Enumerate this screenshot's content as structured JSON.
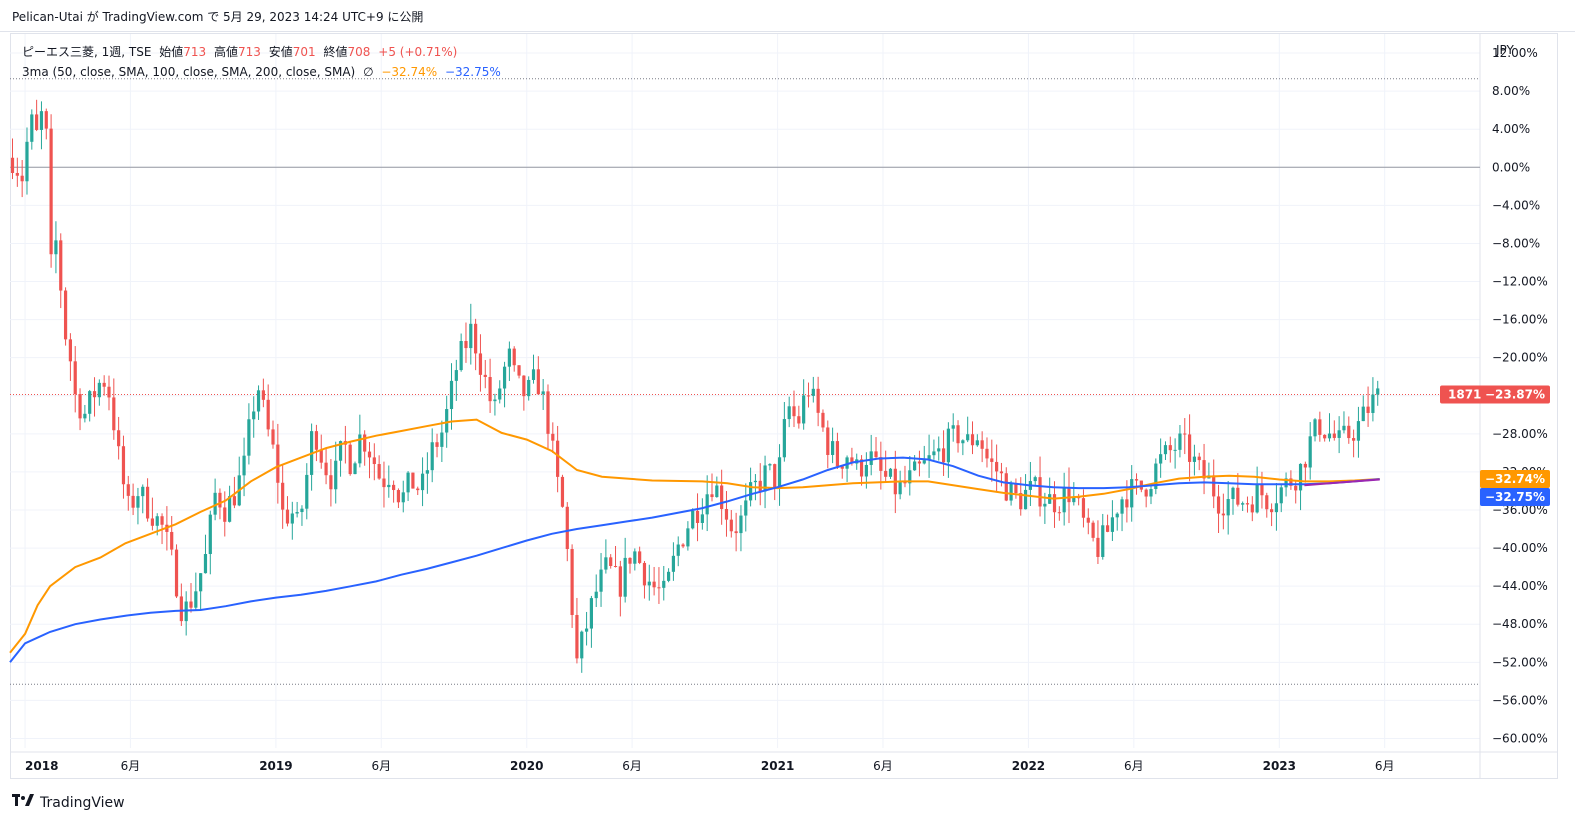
{
  "header": {
    "publish_line": "Pelican-Utai が TradingView.com で 5月 29, 2023 14:24 UTC+9 に公開"
  },
  "legend": {
    "symbol": "ピーエス三菱, 1週, TSE",
    "open_label": "始値",
    "open_value": "713",
    "high_label": "高値",
    "high_value": "713",
    "low_label": "安値",
    "low_value": "701",
    "close_label": "終値",
    "close_value": "708",
    "change": "+5 (+0.71%)",
    "indicator": "3ma (50, close, SMA, 100, close, SMA, 200, close, SMA)",
    "indicator_icon": "∅",
    "ma50_value": "−32.74%",
    "ma100_value": "−32.75%"
  },
  "axis": {
    "currency": "JPY",
    "price_badge_label": "1871",
    "price_badge_value": "−23.87%",
    "ma_badges": [
      "−32.74%",
      "−32.75%"
    ]
  },
  "brand": {
    "name": "TradingView"
  },
  "colors": {
    "up": "#26a69a",
    "down": "#ef5350",
    "ma50": "#ff9800",
    "ma100": "#2962ff",
    "ma200": "#9c27b0",
    "grid": "#f0f3fa"
  },
  "chart_data": {
    "type": "candlestick",
    "yunit": "percent",
    "ylim": [
      -61,
      14
    ],
    "yticks": [
      "12.00%",
      "8.00%",
      "4.00%",
      "0.00%",
      "−4.00%",
      "−8.00%",
      "−12.00%",
      "−16.00%",
      "−20.00%",
      "−24.00%",
      "−28.00%",
      "−32.00%",
      "−36.00%",
      "−40.00%",
      "−44.00%",
      "−48.00%",
      "−52.00%",
      "−56.00%",
      "−60.00%"
    ],
    "ytick_values": [
      12,
      8,
      4,
      0,
      -4,
      -8,
      -12,
      -16,
      -20,
      -24,
      -28,
      -32,
      -36,
      -40,
      -44,
      -48,
      -52,
      -56,
      -60
    ],
    "xticks": [
      {
        "label": "2018",
        "t": 2018.0,
        "year": true
      },
      {
        "label": "6月",
        "t": 2018.42,
        "year": false
      },
      {
        "label": "2019",
        "t": 2019.0,
        "year": true
      },
      {
        "label": "6月",
        "t": 2019.42,
        "year": false
      },
      {
        "label": "2020",
        "t": 2020.0,
        "year": true
      },
      {
        "label": "6月",
        "t": 2020.42,
        "year": false
      },
      {
        "label": "2021",
        "t": 2021.0,
        "year": true
      },
      {
        "label": "6月",
        "t": 2021.42,
        "year": false
      },
      {
        "label": "2022",
        "t": 2022.0,
        "year": true
      },
      {
        "label": "6月",
        "t": 2022.42,
        "year": false
      },
      {
        "label": "2023",
        "t": 2023.0,
        "year": true
      },
      {
        "label": "6月",
        "t": 2023.42,
        "year": false
      }
    ],
    "xlim": [
      2017.94,
      2023.8
    ],
    "reference_lines": [
      {
        "value": 0,
        "style": "solid"
      },
      {
        "value": 9.3,
        "style": "dotted"
      },
      {
        "value": -54.3,
        "style": "dotted"
      },
      {
        "value": -23.87,
        "style": "dotted-red"
      }
    ],
    "close_path": [
      [
        2017.95,
        1
      ],
      [
        2017.99,
        -1
      ],
      [
        2018.02,
        5
      ],
      [
        2018.05,
        3
      ],
      [
        2018.07,
        6
      ],
      [
        2018.09,
        2
      ],
      [
        2018.1,
        -11
      ],
      [
        2018.13,
        -7
      ],
      [
        2018.15,
        -16
      ],
      [
        2018.18,
        -20
      ],
      [
        2018.2,
        -24
      ],
      [
        2018.24,
        -26
      ],
      [
        2018.27,
        -24
      ],
      [
        2018.31,
        -22
      ],
      [
        2018.34,
        -24
      ],
      [
        2018.37,
        -30
      ],
      [
        2018.41,
        -36
      ],
      [
        2018.45,
        -34
      ],
      [
        2018.5,
        -36
      ],
      [
        2018.55,
        -38
      ],
      [
        2018.6,
        -43
      ],
      [
        2018.63,
        -47
      ],
      [
        2018.67,
        -45
      ],
      [
        2018.72,
        -41
      ],
      [
        2018.76,
        -34
      ],
      [
        2018.8,
        -36
      ],
      [
        2018.84,
        -34
      ],
      [
        2018.88,
        -31
      ],
      [
        2018.9,
        -26
      ],
      [
        2018.93,
        -23
      ],
      [
        2018.96,
        -27
      ],
      [
        2019.0,
        -31
      ],
      [
        2019.03,
        -37
      ],
      [
        2019.06,
        -36
      ],
      [
        2019.09,
        -38
      ],
      [
        2019.12,
        -33
      ],
      [
        2019.15,
        -27
      ],
      [
        2019.19,
        -31
      ],
      [
        2019.23,
        -33
      ],
      [
        2019.27,
        -29
      ],
      [
        2019.3,
        -31
      ],
      [
        2019.34,
        -28
      ],
      [
        2019.38,
        -30
      ],
      [
        2019.42,
        -33
      ],
      [
        2019.46,
        -32
      ],
      [
        2019.5,
        -35
      ],
      [
        2019.54,
        -33
      ],
      [
        2019.58,
        -34
      ],
      [
        2019.62,
        -30
      ],
      [
        2019.66,
        -28
      ],
      [
        2019.69,
        -25
      ],
      [
        2019.72,
        -21
      ],
      [
        2019.75,
        -19
      ],
      [
        2019.78,
        -17
      ],
      [
        2019.81,
        -20
      ],
      [
        2019.84,
        -23
      ],
      [
        2019.87,
        -26
      ],
      [
        2019.9,
        -22
      ],
      [
        2019.93,
        -20
      ],
      [
        2019.96,
        -23
      ],
      [
        2020.0,
        -24
      ],
      [
        2020.04,
        -22
      ],
      [
        2020.08,
        -26
      ],
      [
        2020.12,
        -33
      ],
      [
        2020.15,
        -37
      ],
      [
        2020.17,
        -43
      ],
      [
        2020.2,
        -52
      ],
      [
        2020.23,
        -49
      ],
      [
        2020.27,
        -45
      ],
      [
        2020.32,
        -42
      ],
      [
        2020.37,
        -44
      ],
      [
        2020.42,
        -40
      ],
      [
        2020.46,
        -42
      ],
      [
        2020.5,
        -44
      ],
      [
        2020.55,
        -45
      ],
      [
        2020.6,
        -40
      ],
      [
        2020.65,
        -37
      ],
      [
        2020.7,
        -35
      ],
      [
        2020.74,
        -33
      ],
      [
        2020.78,
        -35
      ],
      [
        2020.82,
        -38
      ],
      [
        2020.86,
        -37
      ],
      [
        2020.9,
        -34
      ],
      [
        2020.93,
        -33
      ],
      [
        2020.96,
        -32
      ],
      [
        2021.0,
        -33
      ],
      [
        2021.04,
        -25
      ],
      [
        2021.08,
        -27
      ],
      [
        2021.12,
        -23
      ],
      [
        2021.16,
        -26
      ],
      [
        2021.2,
        -29
      ],
      [
        2021.24,
        -31
      ],
      [
        2021.28,
        -30
      ],
      [
        2021.32,
        -32
      ],
      [
        2021.36,
        -30
      ],
      [
        2021.4,
        -32
      ],
      [
        2021.44,
        -33
      ],
      [
        2021.48,
        -34
      ],
      [
        2021.52,
        -33
      ],
      [
        2021.56,
        -32
      ],
      [
        2021.6,
        -31
      ],
      [
        2021.64,
        -30
      ],
      [
        2021.68,
        -29
      ],
      [
        2021.72,
        -28
      ],
      [
        2021.76,
        -29
      ],
      [
        2021.8,
        -28
      ],
      [
        2021.84,
        -31
      ],
      [
        2021.88,
        -32
      ],
      [
        2021.92,
        -34
      ],
      [
        2021.96,
        -35
      ],
      [
        2022.0,
        -34
      ],
      [
        2022.04,
        -34
      ],
      [
        2022.08,
        -35
      ],
      [
        2022.12,
        -35
      ],
      [
        2022.16,
        -34
      ],
      [
        2022.2,
        -36
      ],
      [
        2022.24,
        -39
      ],
      [
        2022.28,
        -40
      ],
      [
        2022.32,
        -38
      ],
      [
        2022.36,
        -35
      ],
      [
        2022.4,
        -34
      ],
      [
        2022.44,
        -34
      ],
      [
        2022.48,
        -33
      ],
      [
        2022.52,
        -31
      ],
      [
        2022.56,
        -30
      ],
      [
        2022.6,
        -29
      ],
      [
        2022.64,
        -30
      ],
      [
        2022.68,
        -32
      ],
      [
        2022.72,
        -33
      ],
      [
        2022.76,
        -35
      ],
      [
        2022.8,
        -35
      ],
      [
        2022.84,
        -35
      ],
      [
        2022.88,
        -35
      ],
      [
        2022.92,
        -34
      ],
      [
        2022.96,
        -35
      ],
      [
        2023.0,
        -34
      ],
      [
        2023.04,
        -33
      ],
      [
        2023.08,
        -32
      ],
      [
        2023.12,
        -29
      ],
      [
        2023.16,
        -27
      ],
      [
        2023.2,
        -28
      ],
      [
        2023.24,
        -29
      ],
      [
        2023.28,
        -28
      ],
      [
        2023.32,
        -27
      ],
      [
        2023.36,
        -25
      ],
      [
        2023.4,
        -23.87
      ]
    ],
    "series": [
      {
        "id": "ma50",
        "points": [
          [
            2017.94,
            -51
          ],
          [
            2018.0,
            -49
          ],
          [
            2018.05,
            -46
          ],
          [
            2018.1,
            -44
          ],
          [
            2018.2,
            -42
          ],
          [
            2018.3,
            -41
          ],
          [
            2018.4,
            -39.5
          ],
          [
            2018.5,
            -38.5
          ],
          [
            2018.6,
            -37.5
          ],
          [
            2018.7,
            -36.2
          ],
          [
            2018.8,
            -35
          ],
          [
            2018.9,
            -33
          ],
          [
            2019.0,
            -31.5
          ],
          [
            2019.1,
            -30.5
          ],
          [
            2019.2,
            -29.5
          ],
          [
            2019.3,
            -28.8
          ],
          [
            2019.4,
            -28.2
          ],
          [
            2019.5,
            -27.7
          ],
          [
            2019.6,
            -27.2
          ],
          [
            2019.7,
            -26.7
          ],
          [
            2019.8,
            -26.5
          ],
          [
            2019.85,
            -27.2
          ],
          [
            2019.9,
            -27.9
          ],
          [
            2020.0,
            -28.6
          ],
          [
            2020.1,
            -29.8
          ],
          [
            2020.2,
            -31.8
          ],
          [
            2020.3,
            -32.5
          ],
          [
            2020.5,
            -32.9
          ],
          [
            2020.7,
            -33.0
          ],
          [
            2020.8,
            -33.2
          ],
          [
            2020.9,
            -33.6
          ],
          [
            2021.0,
            -33.7
          ],
          [
            2021.1,
            -33.6
          ],
          [
            2021.2,
            -33.4
          ],
          [
            2021.3,
            -33.2
          ],
          [
            2021.5,
            -33.0
          ],
          [
            2021.6,
            -33.0
          ],
          [
            2021.7,
            -33.4
          ],
          [
            2021.8,
            -33.8
          ],
          [
            2021.9,
            -34.2
          ],
          [
            2022.0,
            -34.5
          ],
          [
            2022.1,
            -34.8
          ],
          [
            2022.2,
            -34.6
          ],
          [
            2022.3,
            -34.3
          ],
          [
            2022.4,
            -33.8
          ],
          [
            2022.5,
            -33.2
          ],
          [
            2022.6,
            -32.7
          ],
          [
            2022.7,
            -32.5
          ],
          [
            2022.8,
            -32.4
          ],
          [
            2022.9,
            -32.5
          ],
          [
            2023.0,
            -32.8
          ],
          [
            2023.1,
            -33.0
          ],
          [
            2023.2,
            -33.0
          ],
          [
            2023.3,
            -32.9
          ],
          [
            2023.4,
            -32.74
          ]
        ]
      },
      {
        "id": "ma100",
        "points": [
          [
            2017.94,
            -52
          ],
          [
            2018.0,
            -50
          ],
          [
            2018.1,
            -48.8
          ],
          [
            2018.2,
            -48
          ],
          [
            2018.3,
            -47.5
          ],
          [
            2018.4,
            -47.1
          ],
          [
            2018.5,
            -46.8
          ],
          [
            2018.6,
            -46.6
          ],
          [
            2018.7,
            -46.5
          ],
          [
            2018.8,
            -46.1
          ],
          [
            2018.9,
            -45.6
          ],
          [
            2019.0,
            -45.2
          ],
          [
            2019.1,
            -44.9
          ],
          [
            2019.2,
            -44.5
          ],
          [
            2019.3,
            -44.0
          ],
          [
            2019.4,
            -43.5
          ],
          [
            2019.5,
            -42.8
          ],
          [
            2019.6,
            -42.2
          ],
          [
            2019.7,
            -41.5
          ],
          [
            2019.8,
            -40.8
          ],
          [
            2019.9,
            -40.0
          ],
          [
            2020.0,
            -39.2
          ],
          [
            2020.1,
            -38.5
          ],
          [
            2020.2,
            -38.0
          ],
          [
            2020.3,
            -37.6
          ],
          [
            2020.4,
            -37.2
          ],
          [
            2020.5,
            -36.8
          ],
          [
            2020.6,
            -36.3
          ],
          [
            2020.7,
            -35.8
          ],
          [
            2020.8,
            -35.1
          ],
          [
            2020.9,
            -34.3
          ],
          [
            2021.0,
            -33.6
          ],
          [
            2021.1,
            -32.8
          ],
          [
            2021.2,
            -31.8
          ],
          [
            2021.3,
            -31.0
          ],
          [
            2021.4,
            -30.6
          ],
          [
            2021.5,
            -30.5
          ],
          [
            2021.6,
            -30.7
          ],
          [
            2021.7,
            -31.4
          ],
          [
            2021.8,
            -32.4
          ],
          [
            2021.9,
            -33.1
          ],
          [
            2022.0,
            -33.4
          ],
          [
            2022.1,
            -33.6
          ],
          [
            2022.2,
            -33.7
          ],
          [
            2022.3,
            -33.7
          ],
          [
            2022.4,
            -33.6
          ],
          [
            2022.5,
            -33.4
          ],
          [
            2022.6,
            -33.2
          ],
          [
            2022.7,
            -33.1
          ],
          [
            2022.8,
            -33.2
          ],
          [
            2022.9,
            -33.3
          ],
          [
            2023.0,
            -33.3
          ],
          [
            2023.1,
            -33.3
          ],
          [
            2023.2,
            -33.2
          ],
          [
            2023.3,
            -33.0
          ],
          [
            2023.4,
            -32.75
          ]
        ]
      },
      {
        "id": "ma200",
        "points": [
          [
            2023.1,
            -33.4
          ],
          [
            2023.2,
            -33.2
          ],
          [
            2023.3,
            -33.0
          ],
          [
            2023.4,
            -32.8
          ]
        ]
      }
    ]
  }
}
